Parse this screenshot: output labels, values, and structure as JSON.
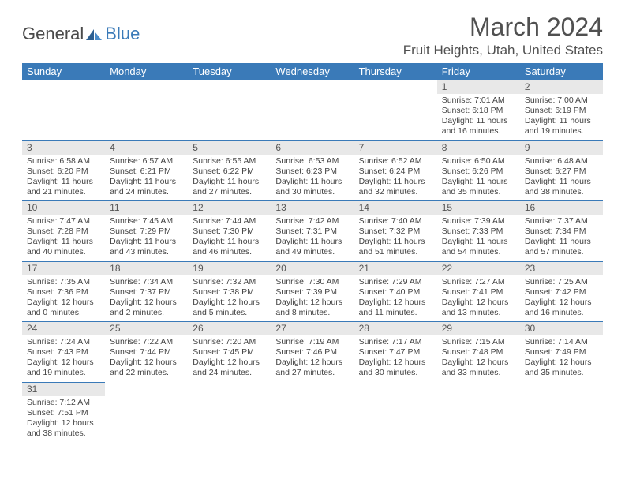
{
  "logo": {
    "part1": "General",
    "part2": "Blue"
  },
  "header": {
    "month_title": "March 2024",
    "location": "Fruit Heights, Utah, United States"
  },
  "colors": {
    "header_bg": "#3a7ab8",
    "daynum_bg": "#e8e8e8",
    "text": "#444444"
  },
  "weekdays": [
    "Sunday",
    "Monday",
    "Tuesday",
    "Wednesday",
    "Thursday",
    "Friday",
    "Saturday"
  ],
  "first_day_index": 5,
  "days": [
    {
      "n": 1,
      "sr": "7:01 AM",
      "ss": "6:18 PM",
      "dl": "11 hours and 16 minutes."
    },
    {
      "n": 2,
      "sr": "7:00 AM",
      "ss": "6:19 PM",
      "dl": "11 hours and 19 minutes."
    },
    {
      "n": 3,
      "sr": "6:58 AM",
      "ss": "6:20 PM",
      "dl": "11 hours and 21 minutes."
    },
    {
      "n": 4,
      "sr": "6:57 AM",
      "ss": "6:21 PM",
      "dl": "11 hours and 24 minutes."
    },
    {
      "n": 5,
      "sr": "6:55 AM",
      "ss": "6:22 PM",
      "dl": "11 hours and 27 minutes."
    },
    {
      "n": 6,
      "sr": "6:53 AM",
      "ss": "6:23 PM",
      "dl": "11 hours and 30 minutes."
    },
    {
      "n": 7,
      "sr": "6:52 AM",
      "ss": "6:24 PM",
      "dl": "11 hours and 32 minutes."
    },
    {
      "n": 8,
      "sr": "6:50 AM",
      "ss": "6:26 PM",
      "dl": "11 hours and 35 minutes."
    },
    {
      "n": 9,
      "sr": "6:48 AM",
      "ss": "6:27 PM",
      "dl": "11 hours and 38 minutes."
    },
    {
      "n": 10,
      "sr": "7:47 AM",
      "ss": "7:28 PM",
      "dl": "11 hours and 40 minutes."
    },
    {
      "n": 11,
      "sr": "7:45 AM",
      "ss": "7:29 PM",
      "dl": "11 hours and 43 minutes."
    },
    {
      "n": 12,
      "sr": "7:44 AM",
      "ss": "7:30 PM",
      "dl": "11 hours and 46 minutes."
    },
    {
      "n": 13,
      "sr": "7:42 AM",
      "ss": "7:31 PM",
      "dl": "11 hours and 49 minutes."
    },
    {
      "n": 14,
      "sr": "7:40 AM",
      "ss": "7:32 PM",
      "dl": "11 hours and 51 minutes."
    },
    {
      "n": 15,
      "sr": "7:39 AM",
      "ss": "7:33 PM",
      "dl": "11 hours and 54 minutes."
    },
    {
      "n": 16,
      "sr": "7:37 AM",
      "ss": "7:34 PM",
      "dl": "11 hours and 57 minutes."
    },
    {
      "n": 17,
      "sr": "7:35 AM",
      "ss": "7:36 PM",
      "dl": "12 hours and 0 minutes."
    },
    {
      "n": 18,
      "sr": "7:34 AM",
      "ss": "7:37 PM",
      "dl": "12 hours and 2 minutes."
    },
    {
      "n": 19,
      "sr": "7:32 AM",
      "ss": "7:38 PM",
      "dl": "12 hours and 5 minutes."
    },
    {
      "n": 20,
      "sr": "7:30 AM",
      "ss": "7:39 PM",
      "dl": "12 hours and 8 minutes."
    },
    {
      "n": 21,
      "sr": "7:29 AM",
      "ss": "7:40 PM",
      "dl": "12 hours and 11 minutes."
    },
    {
      "n": 22,
      "sr": "7:27 AM",
      "ss": "7:41 PM",
      "dl": "12 hours and 13 minutes."
    },
    {
      "n": 23,
      "sr": "7:25 AM",
      "ss": "7:42 PM",
      "dl": "12 hours and 16 minutes."
    },
    {
      "n": 24,
      "sr": "7:24 AM",
      "ss": "7:43 PM",
      "dl": "12 hours and 19 minutes."
    },
    {
      "n": 25,
      "sr": "7:22 AM",
      "ss": "7:44 PM",
      "dl": "12 hours and 22 minutes."
    },
    {
      "n": 26,
      "sr": "7:20 AM",
      "ss": "7:45 PM",
      "dl": "12 hours and 24 minutes."
    },
    {
      "n": 27,
      "sr": "7:19 AM",
      "ss": "7:46 PM",
      "dl": "12 hours and 27 minutes."
    },
    {
      "n": 28,
      "sr": "7:17 AM",
      "ss": "7:47 PM",
      "dl": "12 hours and 30 minutes."
    },
    {
      "n": 29,
      "sr": "7:15 AM",
      "ss": "7:48 PM",
      "dl": "12 hours and 33 minutes."
    },
    {
      "n": 30,
      "sr": "7:14 AM",
      "ss": "7:49 PM",
      "dl": "12 hours and 35 minutes."
    },
    {
      "n": 31,
      "sr": "7:12 AM",
      "ss": "7:51 PM",
      "dl": "12 hours and 38 minutes."
    }
  ],
  "labels": {
    "sunrise": "Sunrise: ",
    "sunset": "Sunset: ",
    "daylight": "Daylight: "
  }
}
